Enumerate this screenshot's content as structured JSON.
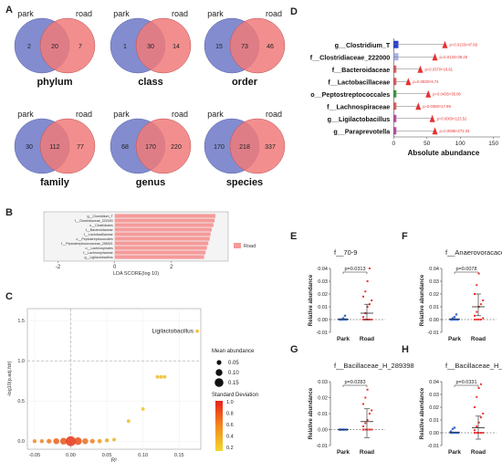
{
  "panels": {
    "A": {
      "letter": "A",
      "venns": [
        {
          "left_label": "park",
          "right_label": "road",
          "left_only": "2",
          "both": "20",
          "right_only": "7",
          "title": "phylum"
        },
        {
          "left_label": "park",
          "right_label": "road",
          "left_only": "1",
          "both": "30",
          "right_only": "14",
          "title": "class"
        },
        {
          "left_label": "park",
          "right_label": "road",
          "left_only": "15",
          "both": "73",
          "right_only": "46",
          "title": "order"
        },
        {
          "left_label": "park",
          "right_label": "road",
          "left_only": "30",
          "both": "112",
          "right_only": "77",
          "title": "family"
        },
        {
          "left_label": "park",
          "right_label": "road",
          "left_only": "68",
          "both": "170",
          "right_only": "220",
          "title": "genus"
        },
        {
          "left_label": "park",
          "right_label": "road",
          "left_only": "170",
          "both": "218",
          "right_only": "337",
          "title": "species"
        }
      ],
      "colors": {
        "park": "#7b86cc",
        "road": "#f07a7a"
      }
    },
    "B": {
      "letter": "B",
      "xlabel": "LDA SCORE(log 10)",
      "legend": "Road",
      "color": "#f59a9a"
    },
    "C": {
      "letter": "C",
      "xlabel": "R²",
      "ylabel": "-log10(p.adj.fdr)",
      "highlight_label": "Ligilactobacillus",
      "legend_size_title": "Mean abundance",
      "legend_size_labels": [
        "0.05",
        "0.10",
        "0.15"
      ],
      "legend_color_title": "Standard Deviation",
      "legend_color_ticks": [
        "1.0",
        "0.8",
        "0.6",
        "0.4",
        "0.2"
      ]
    },
    "D": {
      "letter": "D",
      "xlabel": "Absolute abundance"
    },
    "E": {
      "letter": "E",
      "title": "f__70-9",
      "pvalue": "p=0.0313",
      "ylabel": "Relative abundance",
      "yticks": [
        "0.04",
        "0.03",
        "0.02",
        "0.01",
        "0.00",
        "-0.01"
      ],
      "groups": [
        "Park",
        "Road"
      ]
    },
    "F": {
      "letter": "F",
      "title": "f__Anaerovoracaceae",
      "pvalue": "p=0.0078",
      "ylabel": "Relative abundance",
      "yticks": [
        "0.04",
        "0.03",
        "0.02",
        "0.01",
        "0.00",
        "-0.01"
      ],
      "groups": [
        "Park",
        "Road"
      ]
    },
    "G": {
      "letter": "G",
      "title": "f__Bacillaceae_H_289398",
      "pvalue": "p=0.0283",
      "ylabel": "Relative abundance",
      "yticks": [
        "0.03",
        "0.02",
        "0.01",
        "0.00",
        "-0.01"
      ],
      "groups": [
        "Park",
        "Road"
      ]
    },
    "H": {
      "letter": "H",
      "title": "f__Bacillaceae_H_294103",
      "pvalue": "p=0.0331",
      "ylabel": "Relative abundance",
      "yticks": [
        "0.04",
        "0.03",
        "0.02",
        "0.01",
        "0.00",
        "-0.01"
      ],
      "groups": [
        "Park",
        "Road"
      ]
    }
  },
  "chart_data": [
    {
      "type": "bar",
      "orientation": "horizontal",
      "categories": [
        "g__Clostridium_T",
        "f__Clostridiaceae_222000",
        "o__Clostridiales",
        "f__Bacteroidaceae",
        "f__Lactobacillaceae",
        "o__Peptostreptococcales",
        "f__Peptostreptococcaceae_256921",
        "o__Lachnospirales",
        "f__Lachnospiraceae",
        "g__Ligilactobacillus"
      ],
      "values": [
        3.55,
        3.52,
        3.48,
        3.42,
        3.38,
        3.35,
        3.3,
        3.25,
        3.2,
        3.15
      ],
      "xlim": [
        -2.5,
        4
      ],
      "xticks": [
        -2,
        0,
        2
      ]
    },
    {
      "type": "scatter",
      "xlim": [
        -0.06,
        0.18
      ],
      "ylim": [
        -0.1,
        1.65
      ],
      "xticks": [
        "-0.05",
        "0.00",
        "0.05",
        "0.10",
        "0.15"
      ],
      "yticks": [
        "0.0",
        "0.5",
        "1.0",
        "1.5"
      ],
      "points": [
        {
          "x": -0.05,
          "y": 0.0,
          "abund": 0.03,
          "sd": 0.5
        },
        {
          "x": -0.04,
          "y": 0.0,
          "abund": 0.03,
          "sd": 0.55
        },
        {
          "x": -0.03,
          "y": 0.0,
          "abund": 0.05,
          "sd": 0.6
        },
        {
          "x": -0.02,
          "y": 0.0,
          "abund": 0.08,
          "sd": 0.7
        },
        {
          "x": -0.01,
          "y": 0.0,
          "abund": 0.1,
          "sd": 0.75
        },
        {
          "x": 0.0,
          "y": 0.0,
          "abund": 0.18,
          "sd": 0.9
        },
        {
          "x": 0.01,
          "y": 0.0,
          "abund": 0.12,
          "sd": 0.8
        },
        {
          "x": 0.02,
          "y": 0.0,
          "abund": 0.08,
          "sd": 0.65
        },
        {
          "x": 0.03,
          "y": 0.0,
          "abund": 0.05,
          "sd": 0.55
        },
        {
          "x": 0.04,
          "y": 0.0,
          "abund": 0.04,
          "sd": 0.45
        },
        {
          "x": 0.05,
          "y": 0.01,
          "abund": 0.03,
          "sd": 0.4
        },
        {
          "x": 0.06,
          "y": 0.02,
          "abund": 0.02,
          "sd": 0.35
        },
        {
          "x": 0.08,
          "y": 0.25,
          "abund": 0.02,
          "sd": 0.3
        },
        {
          "x": 0.1,
          "y": 0.4,
          "abund": 0.02,
          "sd": 0.25
        },
        {
          "x": 0.12,
          "y": 0.8,
          "abund": 0.02,
          "sd": 0.3
        },
        {
          "x": 0.125,
          "y": 0.8,
          "abund": 0.02,
          "sd": 0.3
        },
        {
          "x": 0.13,
          "y": 0.8,
          "abund": 0.02,
          "sd": 0.3
        },
        {
          "x": 0.175,
          "y": 1.37,
          "abund": 0.02,
          "sd": 0.3,
          "label": "Ligilactobacillus"
        }
      ]
    },
    {
      "type": "bar",
      "orientation": "horizontal",
      "categories": [
        "g__Clostridium_T",
        "f__Clostridiaceae_222000",
        "f__Bacteroidaceae",
        "f__Lactobacillaceae",
        "o__Peptostreptococcales",
        "f__Lachnospiraceae",
        "g__Ligilactobacillus",
        "g__Paraprevotella"
      ],
      "values": [
        2,
        2,
        1,
        1,
        1,
        1,
        1,
        1
      ],
      "errors": [
        47.69,
        39.25,
        18.61,
        8.74,
        35.08,
        17.89,
        123.52,
        272.33
      ],
      "fold": [
        77,
        62,
        40,
        22,
        52,
        37,
        58,
        62
      ],
      "annotations": [
        "p=0.0133×47.69",
        "p=0.0133×39.25",
        "p=0.0370×18.61",
        "p=0.0030×8.74",
        "p=0.0435×35.08",
        "p=0.0383×17.89",
        "p=0.0003×123.52",
        "p=0.0086×272.33"
      ],
      "bar_colors": [
        "#2b3fd6",
        "#a9b4e8",
        "#e55b5b",
        "#e55b5b",
        "#3a9a3a",
        "#e55b5b",
        "#c04aa8",
        "#c04aa8"
      ],
      "xticks": [
        0,
        50,
        100,
        150
      ],
      "xlim": [
        -10,
        160
      ]
    },
    {
      "type": "scatter",
      "name_ref": "E",
      "ylim": [
        -0.01,
        0.04
      ],
      "park": [
        0.0,
        0.0,
        0.0,
        0.0,
        0.0,
        0.0,
        0.0,
        0.001,
        0.003
      ],
      "road": [
        0.0,
        0.0,
        0.0,
        0.0,
        0.0,
        0.002,
        0.005,
        0.01,
        0.012,
        0.015,
        0.018,
        0.022,
        0.03,
        0.04
      ],
      "road_mean": 0.005,
      "road_err": [
        0.0,
        0.012
      ],
      "park_mean": 0.0005
    },
    {
      "type": "scatter",
      "name_ref": "F",
      "ylim": [
        -0.01,
        0.04
      ],
      "park": [
        0.0,
        0.0,
        0.0,
        0.0,
        0.0,
        0.0,
        0.001,
        0.002,
        0.004
      ],
      "road": [
        0.0,
        0.0,
        0.0,
        0.0,
        0.001,
        0.003,
        0.006,
        0.01,
        0.012,
        0.015,
        0.02,
        0.027,
        0.036
      ],
      "road_mean": 0.01,
      "road_err": [
        0.003,
        0.02
      ],
      "park_mean": 0.0005
    },
    {
      "type": "scatter",
      "name_ref": "G",
      "ylim": [
        -0.01,
        0.03
      ],
      "park": [
        0.0,
        0.0,
        0.0,
        0.0,
        0.0,
        0.0,
        0.0,
        0.0
      ],
      "road": [
        0.0,
        0.0,
        0.0,
        0.0,
        0.0,
        0.002,
        0.004,
        0.006,
        0.01,
        0.012,
        0.016,
        0.02,
        0.025
      ],
      "road_mean": 0.005,
      "road_err": [
        -0.005,
        0.013
      ],
      "park_mean": 0.0
    },
    {
      "type": "scatter",
      "name_ref": "H",
      "ylim": [
        -0.01,
        0.04
      ],
      "park": [
        0.0,
        0.0,
        0.0,
        0.0,
        0.0,
        0.001,
        0.003,
        0.004
      ],
      "road": [
        0.0,
        0.0,
        0.0,
        0.0,
        0.0,
        0.002,
        0.005,
        0.008,
        0.012,
        0.015,
        0.02,
        0.028,
        0.035,
        0.038
      ],
      "road_mean": 0.004,
      "road_err": [
        -0.005,
        0.013
      ],
      "park_mean": 0.0005
    }
  ]
}
